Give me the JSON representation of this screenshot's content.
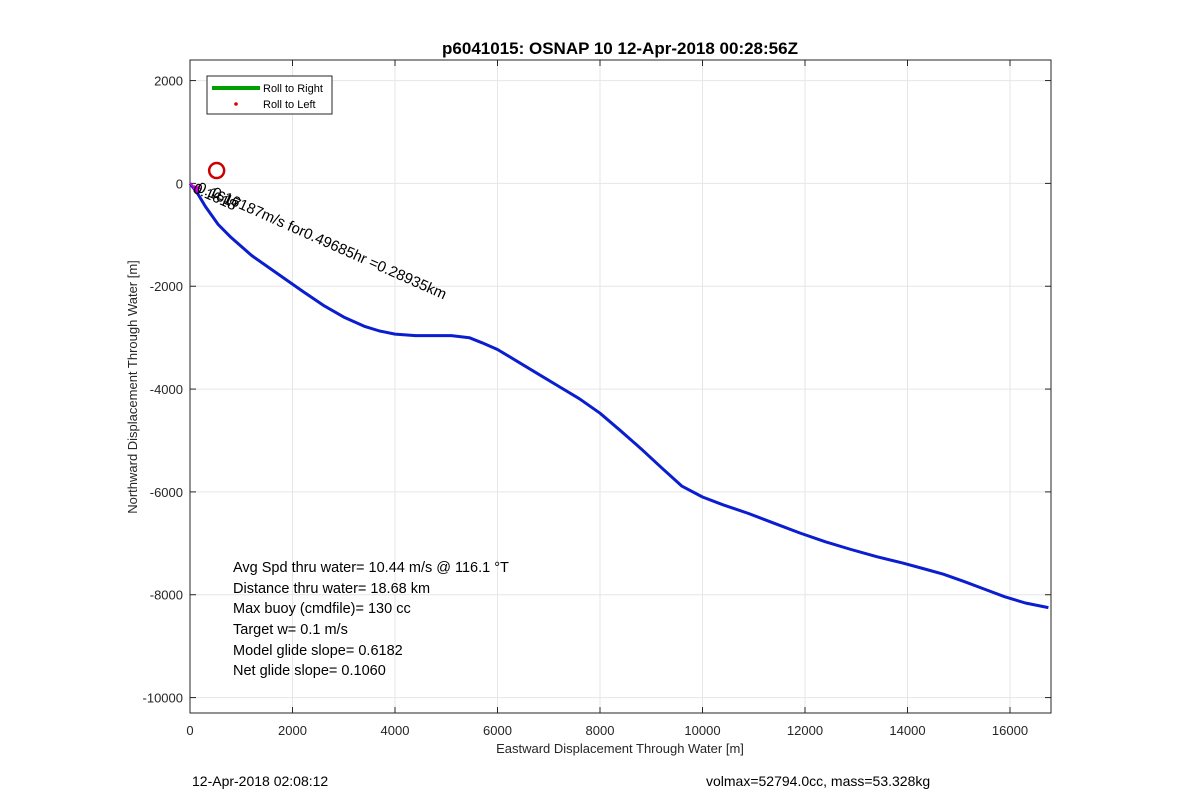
{
  "chart_data": {
    "type": "line",
    "title": "p6041015: OSNAP 10 12-Apr-2018 00:28:56Z",
    "xlabel": "Eastward Displacement Through Water [m]",
    "ylabel": "Northward Displacement Through Water [m]",
    "xlim": [
      0,
      16800
    ],
    "ylim": [
      -10300,
      2400
    ],
    "xticks": [
      0,
      2000,
      4000,
      6000,
      8000,
      10000,
      12000,
      14000,
      16000
    ],
    "yticks": [
      2000,
      0,
      -2000,
      -4000,
      -6000,
      -8000,
      -10000
    ],
    "grid": true,
    "legend": {
      "position": "top-left",
      "entries": [
        {
          "label": "Roll to Right",
          "color": "#00a000",
          "marker": "line"
        },
        {
          "label": "Roll to Left",
          "color": "#e00000",
          "marker": "dot"
        }
      ]
    },
    "series": [
      {
        "color": "#0a1ecf",
        "x": [
          0,
          150,
          300,
          550,
          800,
          1200,
          1700,
          2200,
          2600,
          3000,
          3400,
          3700,
          4000,
          4400,
          4800,
          5100,
          5450,
          5700,
          6000,
          6400,
          6800,
          7200,
          7600,
          8000,
          8400,
          8800,
          9200,
          9600,
          10000,
          10400,
          10900,
          11400,
          11900,
          12400,
          12900,
          13400,
          13900,
          14300,
          14700,
          15100,
          15500,
          15900,
          16300,
          16750
        ],
        "y": [
          0,
          -200,
          -450,
          -800,
          -1050,
          -1400,
          -1750,
          -2100,
          -2370,
          -2600,
          -2780,
          -2870,
          -2930,
          -2960,
          -2960,
          -2960,
          -3000,
          -3100,
          -3230,
          -3470,
          -3710,
          -3950,
          -4190,
          -4470,
          -4810,
          -5160,
          -5530,
          -5890,
          -6100,
          -6250,
          -6420,
          -6610,
          -6800,
          -6970,
          -7120,
          -7260,
          -7380,
          -7490,
          -7600,
          -7740,
          -7890,
          -8040,
          -8160,
          -8250
        ]
      }
    ],
    "markers": [
      {
        "name": "red-circle",
        "x": 520,
        "y": 250,
        "color": "#cc0000"
      },
      {
        "name": "magenta-star",
        "x": 130,
        "y": -100,
        "color": "#cc00cc"
      }
    ],
    "annotations": {
      "current_label": "0.16187m/s for0.49685hr =0.28935km",
      "overlap_labels": [
        "0.1618",
        "0.1617"
      ],
      "stats": [
        "Avg Spd thru water= 10.44 m/s @ 116.1 °T",
        "Distance thru water= 18.68 km",
        "Max buoy (cmdfile)= 130 cc",
        "Target w= 0.1 m/s",
        "Model glide slope= 0.6182",
        "Net glide slope= 0.1060"
      ]
    }
  },
  "footer": {
    "timestamp": "12-Apr-2018 02:08:12",
    "summary": "volmax=52794.0cc, mass=53.328kg"
  }
}
